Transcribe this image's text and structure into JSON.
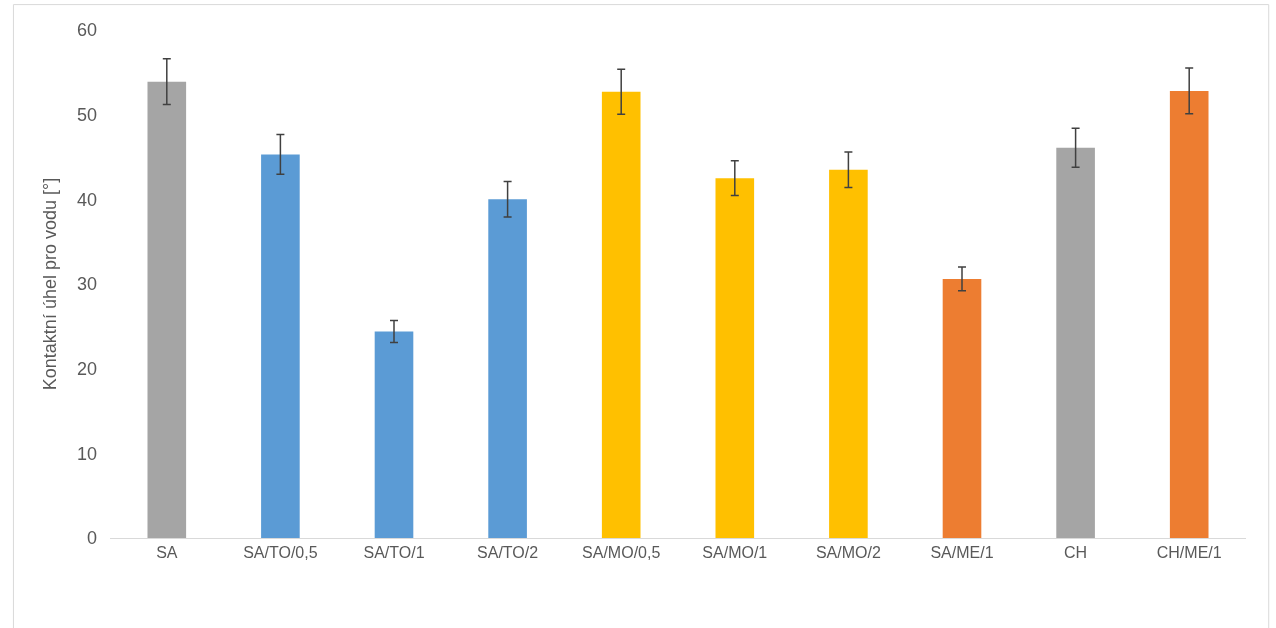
{
  "chart_data": {
    "type": "bar",
    "ylabel": "Kontaktní úhel pro vodu [°]",
    "categories": [
      "SA",
      "SA/TO/0,5",
      "SA/TO/1",
      "SA/TO/2",
      "SA/MO/0,5",
      "SA/MO/1",
      "SA/MO/2",
      "SA/ME/1",
      "CH",
      "CH/ME/1"
    ],
    "values": [
      53.9,
      45.3,
      24.4,
      40.0,
      52.7,
      42.5,
      43.5,
      30.6,
      46.1,
      52.8
    ],
    "errors": [
      2.7,
      2.35,
      1.3,
      2.1,
      2.65,
      2.05,
      2.1,
      1.4,
      2.3,
      2.7
    ],
    "colors": [
      "#a5a5a5",
      "#5b9bd5",
      "#5b9bd5",
      "#5b9bd5",
      "#ffc000",
      "#ffc000",
      "#ffc000",
      "#ed7d31",
      "#a5a5a5",
      "#ed7d31"
    ],
    "ylim": [
      0,
      60
    ],
    "yticks": [
      0,
      10,
      20,
      30,
      40,
      50,
      60
    ],
    "grid": false
  }
}
